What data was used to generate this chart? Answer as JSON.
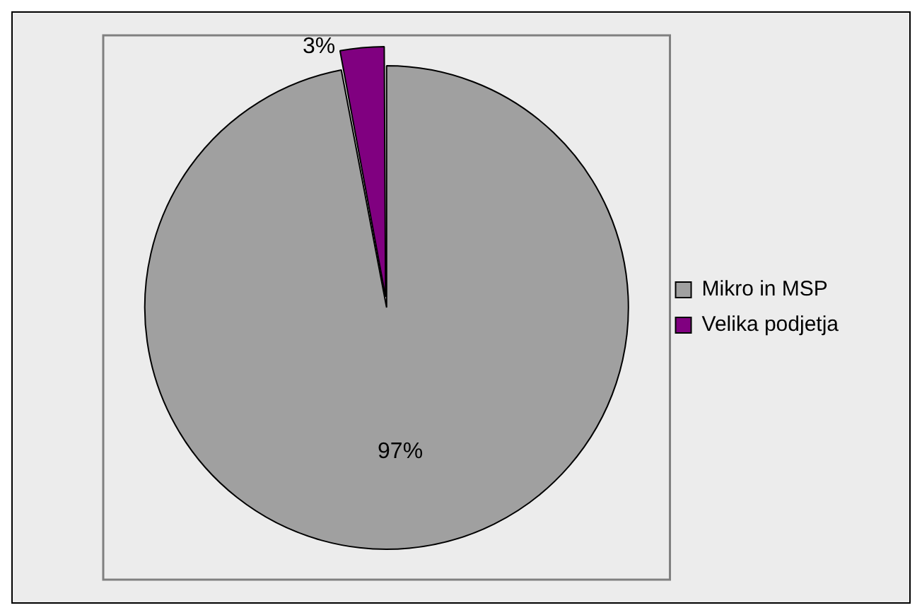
{
  "chart_data": {
    "type": "pie",
    "categories": [
      "Mikro in MSP",
      "Velika podjetja"
    ],
    "values": [
      97,
      3
    ],
    "colors": [
      "#a0a0a0",
      "#800080"
    ],
    "value_labels": [
      "97%",
      "3%"
    ],
    "legend": "right"
  }
}
